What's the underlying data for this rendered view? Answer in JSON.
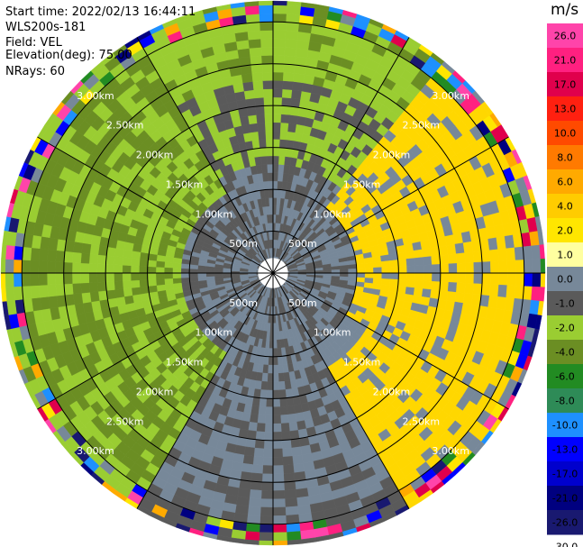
{
  "header": {
    "start_time": "Start time: 2022/02/13 16:44:11",
    "instrument": "WLS200s-181",
    "field": "Field: VEL",
    "elevation": "Elevation(deg): 75.00",
    "nrays": "NRays: 60"
  },
  "chart_data": {
    "type": "polar-ppi",
    "field": "VEL",
    "units": "m/s",
    "elevation_deg": 75.0,
    "n_rays": 60,
    "range_rings_km": [
      0.5,
      1.0,
      1.5,
      2.0,
      2.5,
      3.0
    ],
    "ring_labels": [
      "500m",
      "1.00km",
      "1.50km",
      "2.00km",
      "2.50km",
      "3.00km"
    ],
    "max_range_km": 3.25,
    "azimuth_lines_deg": [
      0,
      30,
      60,
      90,
      120,
      150,
      180,
      210,
      240,
      270,
      300,
      330
    ],
    "approx_field_regions": [
      {
        "azimuth_from_deg": 40,
        "azimuth_to_deg": 150,
        "velocity_ms": 3.0,
        "class": "positive"
      },
      {
        "azimuth_from_deg": 210,
        "azimuth_to_deg": 330,
        "velocity_ms": -2.0,
        "class": "negative"
      },
      {
        "azimuth_from_deg": 150,
        "azimuth_to_deg": 210,
        "velocity_ms": 0.0,
        "class": "near-zero"
      },
      {
        "azimuth_from_deg": 330,
        "azimuth_to_deg": 40,
        "velocity_ms": -1.5,
        "class": "negative"
      }
    ],
    "colorbar": {
      "title": "m/s",
      "tick_labels": [
        "26.0",
        "21.0",
        "17.0",
        "13.0",
        "10.0",
        "8.0",
        "6.0",
        "4.0",
        "2.0",
        "1.0",
        "0.0",
        "-1.0",
        "-2.0",
        "-4.0",
        "-6.0",
        "-8.0",
        "-10.0",
        "-13.0",
        "-17.0",
        "-21.0",
        "-26.0",
        "-30.0"
      ],
      "colors": [
        "#ff44aa",
        "#ff2080",
        "#e0004c",
        "#ff2010",
        "#ff4a00",
        "#ff7a00",
        "#ffaa00",
        "#ffcc00",
        "#ffe600",
        "#ffffa0",
        "#778899",
        "#5a5a5a",
        "#9acd32",
        "#6b8e23",
        "#228b22",
        "#2e8b57",
        "#1e90ff",
        "#0000ff",
        "#0000cd",
        "#000080",
        "#191970"
      ]
    }
  }
}
